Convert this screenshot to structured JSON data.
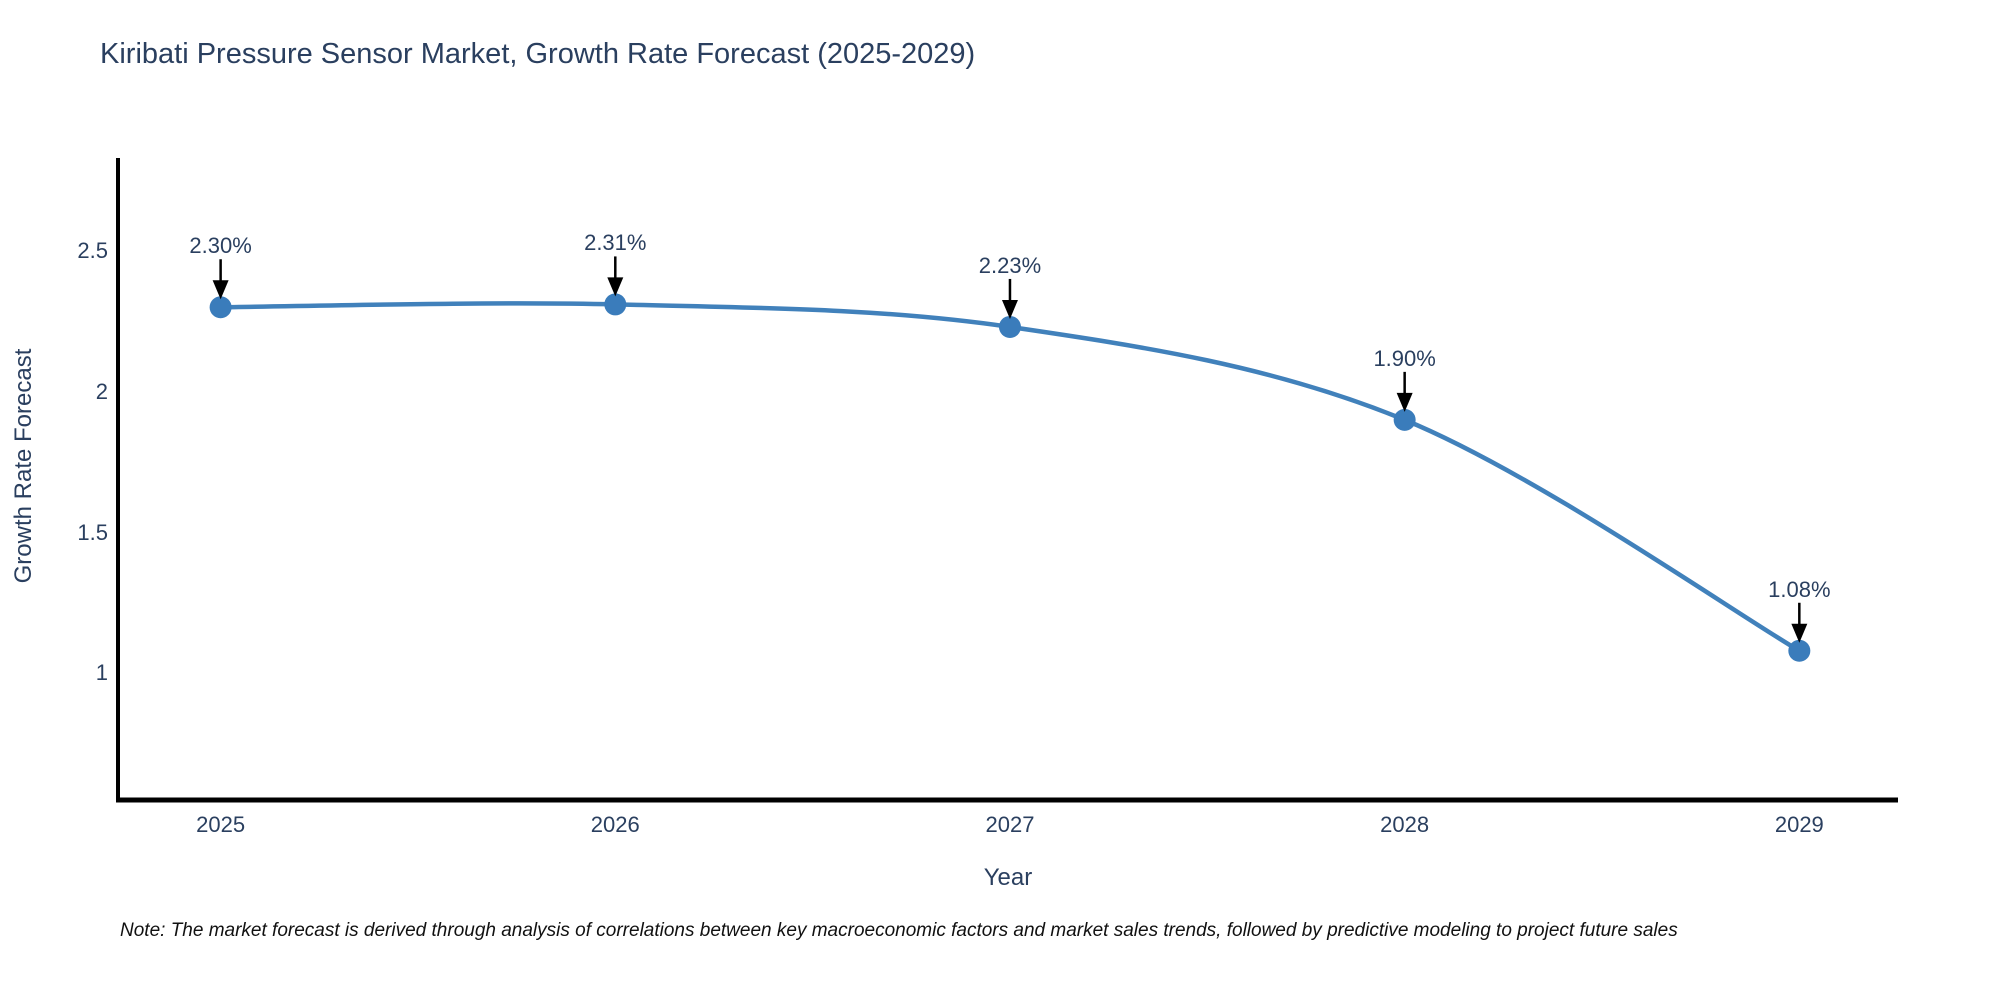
{
  "title": "Kiribati Pressure Sensor Market, Growth Rate Forecast (2025-2029)",
  "note": "Note: The market forecast is derived through analysis of correlations between key macroeconomic factors and market sales trends, followed by predictive modeling to project future sales",
  "colors": {
    "title_text": "#2a3f5f",
    "tick_text": "#2a3f5f",
    "point_label_text": "#2a3f5f",
    "axis": "#000000",
    "line": "#4181bb",
    "marker": "#3a7cbb",
    "arrow": "#000000",
    "note_text": "#111111",
    "background": "#ffffff"
  },
  "chart_data": {
    "type": "line",
    "title": "Kiribati Pressure Sensor Market, Growth Rate Forecast (2025-2029)",
    "xlabel": "Year",
    "ylabel": "Growth Rate Forecast",
    "x": [
      2025,
      2026,
      2027,
      2028,
      2029
    ],
    "values": [
      2.3,
      2.31,
      2.23,
      1.9,
      1.08
    ],
    "point_labels": [
      "2.30%",
      "2.31%",
      "2.23%",
      "1.90%",
      "1.08%"
    ],
    "series_name": "Growth Rate Forecast",
    "xtick_labels": [
      "2025",
      "2026",
      "2027",
      "2028",
      "2029"
    ],
    "yticks": [
      2.5,
      2.0,
      1.5,
      1.0
    ],
    "ytick_labels": [
      "2.5",
      "2",
      "1.5",
      "1"
    ],
    "xlim": [
      2024.74,
      2029.25
    ],
    "ylim": [
      0.55,
      2.83
    ],
    "grid": false,
    "legend": "none",
    "line_shape": "spline",
    "marker_style": "circle",
    "annotations": "value labels with downward arrows above each point"
  }
}
